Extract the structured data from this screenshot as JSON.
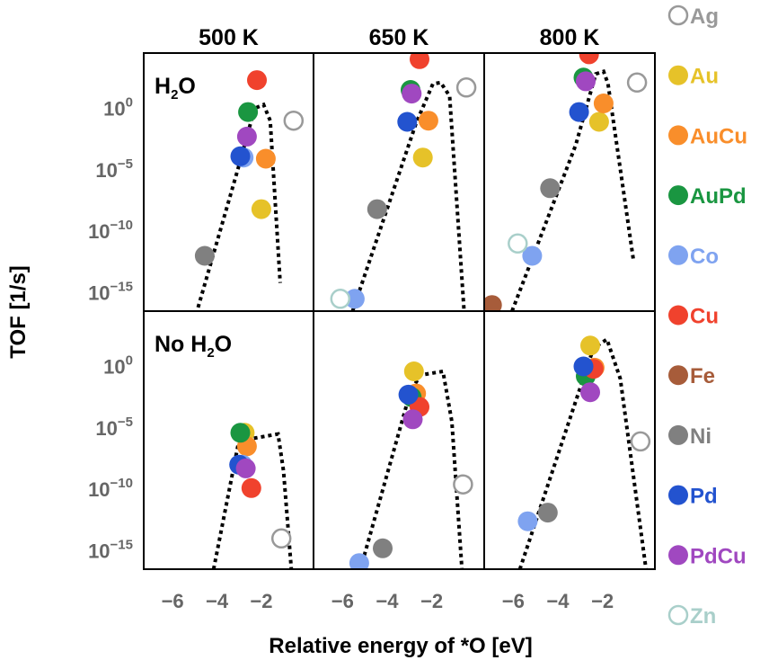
{
  "chart_data": {
    "type": "scatter",
    "columns": [
      "500 K",
      "650 K",
      "800 K"
    ],
    "rows": [
      {
        "label": "H₂O",
        "label_base": "H",
        "label_sub": "2",
        "label_tail": "O"
      },
      {
        "label": "No H₂O",
        "label_base": "No H",
        "label_sub": "2",
        "label_tail": "O"
      }
    ],
    "xlabel": "Relative energy of *O [eV]",
    "ylabel": "TOF [1/s]",
    "x_ticks": [
      -6,
      -4,
      -2
    ],
    "x_tick_labels": [
      "−6",
      "−4",
      "−2"
    ],
    "xlim": [
      -7.3,
      0.35
    ],
    "y_ticks": [
      0,
      -5,
      -10,
      -15
    ],
    "y_tick_labels": [
      {
        "base": "10",
        "exp": "0"
      },
      {
        "base": "10",
        "exp": "−5"
      },
      {
        "base": "10",
        "exp": "−10"
      },
      {
        "base": "10",
        "exp": "−15"
      }
    ],
    "y_scale": "log",
    "log10_ylim": [
      -16.5,
      4.5
    ],
    "legend_position": "right",
    "series": [
      {
        "name": "Ag",
        "color": "#999999",
        "hollow": true
      },
      {
        "name": "Au",
        "color": "#e6c229",
        "hollow": false
      },
      {
        "name": "AuCu",
        "color": "#f98e2b",
        "hollow": false
      },
      {
        "name": "AuPd",
        "color": "#1a9641",
        "hollow": false
      },
      {
        "name": "Co",
        "color": "#7fa3f0",
        "hollow": false
      },
      {
        "name": "Cu",
        "color": "#f0422d",
        "hollow": false
      },
      {
        "name": "Fe",
        "color": "#a75c3a",
        "hollow": false
      },
      {
        "name": "Ni",
        "color": "#808080",
        "hollow": false
      },
      {
        "name": "Pd",
        "color": "#2353cf",
        "hollow": false
      },
      {
        "name": "PdCu",
        "color": "#a048c0",
        "hollow": false
      },
      {
        "name": "Zn",
        "color": "#a9cfca",
        "hollow": true
      }
    ],
    "panels": [
      {
        "row": 0,
        "col": 0,
        "curve": [
          [
            -4.85,
            -16.2
          ],
          [
            -3.05,
            -4.9
          ],
          [
            -2.3,
            0.0
          ],
          [
            -1.9,
            0.3
          ],
          [
            -1.6,
            -1.0
          ],
          [
            -1.15,
            -14.2
          ]
        ],
        "points": [
          {
            "s": "Ag",
            "x": -0.55,
            "y": -1.0
          },
          {
            "s": "Au",
            "x": -2.0,
            "y": -8.2
          },
          {
            "s": "AuCu",
            "x": -1.8,
            "y": -4.1
          },
          {
            "s": "AuPd",
            "x": -2.6,
            "y": -0.3
          },
          {
            "s": "Co",
            "x": -2.8,
            "y": -4.0
          },
          {
            "s": "Cu",
            "x": -2.2,
            "y": 2.3
          },
          {
            "s": "Ni",
            "x": -4.55,
            "y": -12.0
          },
          {
            "s": "Pd",
            "x": -2.95,
            "y": -3.9
          },
          {
            "s": "PdCu",
            "x": -2.65,
            "y": -2.3
          }
        ]
      },
      {
        "row": 0,
        "col": 1,
        "curve": [
          [
            -5.55,
            -16.5
          ],
          [
            -2.7,
            -1.2
          ],
          [
            -1.95,
            2.0
          ],
          [
            -1.6,
            2.1
          ],
          [
            -1.2,
            1.0
          ],
          [
            -0.55,
            -16.5
          ]
        ],
        "points": [
          {
            "s": "Ag",
            "x": -0.45,
            "y": 1.7
          },
          {
            "s": "Au",
            "x": -2.4,
            "y": -4.0
          },
          {
            "s": "AuCu",
            "x": -2.15,
            "y": -1.0
          },
          {
            "s": "AuPd",
            "x": -2.95,
            "y": 1.5
          },
          {
            "s": "Co",
            "x": -5.45,
            "y": -15.5
          },
          {
            "s": "Cu",
            "x": -2.55,
            "y": 4.0
          },
          {
            "s": "Ni",
            "x": -4.45,
            "y": -8.2
          },
          {
            "s": "Pd",
            "x": -3.1,
            "y": -1.1
          },
          {
            "s": "PdCu",
            "x": -2.9,
            "y": 1.2
          },
          {
            "s": "Zn",
            "x": -6.1,
            "y": -15.5
          }
        ]
      },
      {
        "row": 0,
        "col": 2,
        "curve": [
          [
            -6.05,
            -16.5
          ],
          [
            -3.2,
            -3.0
          ],
          [
            -2.3,
            2.8
          ],
          [
            -1.95,
            3.0
          ],
          [
            -1.75,
            2.0
          ],
          [
            -0.6,
            -12.5
          ]
        ],
        "points": [
          {
            "s": "Ag",
            "x": -0.45,
            "y": 2.1
          },
          {
            "s": "Au",
            "x": -2.15,
            "y": -1.1
          },
          {
            "s": "AuCu",
            "x": -1.95,
            "y": 0.4
          },
          {
            "s": "AuPd",
            "x": -2.85,
            "y": 2.5
          },
          {
            "s": "Co",
            "x": -5.15,
            "y": -12.0
          },
          {
            "s": "Cu",
            "x": -2.6,
            "y": 4.4
          },
          {
            "s": "Fe",
            "x": -6.95,
            "y": -16.0
          },
          {
            "s": "Ni",
            "x": -4.35,
            "y": -6.5
          },
          {
            "s": "Pd",
            "x": -3.05,
            "y": -0.3
          },
          {
            "s": "PdCu",
            "x": -2.75,
            "y": 2.2
          },
          {
            "s": "Zn",
            "x": -5.8,
            "y": -11.0
          }
        ]
      },
      {
        "row": 1,
        "col": 0,
        "curve": [
          [
            -4.15,
            -16.5
          ],
          [
            -3.05,
            -6.4
          ],
          [
            -2.5,
            -5.9
          ],
          [
            -1.25,
            -5.5
          ],
          [
            -1.0,
            -8.5
          ],
          [
            -0.65,
            -16.5
          ]
        ],
        "points": [
          {
            "s": "Ag",
            "x": -1.1,
            "y": -14.0
          },
          {
            "s": "Au",
            "x": -2.75,
            "y": -5.4
          },
          {
            "s": "AuCu",
            "x": -2.65,
            "y": -6.5
          },
          {
            "s": "AuPd",
            "x": -2.95,
            "y": -5.4
          },
          {
            "s": "Co",
            "x": -2.85,
            "y": -8.0
          },
          {
            "s": "Cu",
            "x": -2.45,
            "y": -9.9
          },
          {
            "s": "Pd",
            "x": -3.0,
            "y": -8.0
          },
          {
            "s": "PdCu",
            "x": -2.7,
            "y": -8.3
          }
        ]
      },
      {
        "row": 1,
        "col": 1,
        "curve": [
          [
            -5.2,
            -16.5
          ],
          [
            -2.95,
            -2.0
          ],
          [
            -2.5,
            -0.7
          ],
          [
            -1.5,
            -0.4
          ],
          [
            -1.1,
            -4.5
          ],
          [
            -0.65,
            -16.5
          ]
        ],
        "points": [
          {
            "s": "Ag",
            "x": -0.6,
            "y": -9.6
          },
          {
            "s": "Au",
            "x": -2.8,
            "y": -0.4
          },
          {
            "s": "AuCu",
            "x": -2.7,
            "y": -2.2
          },
          {
            "s": "AuPd",
            "x": -2.9,
            "y": -2.5
          },
          {
            "s": "Co",
            "x": -5.25,
            "y": -16.0
          },
          {
            "s": "Cu",
            "x": -2.55,
            "y": -3.3
          },
          {
            "s": "Ni",
            "x": -4.2,
            "y": -14.8
          },
          {
            "s": "Pd",
            "x": -3.05,
            "y": -2.3
          },
          {
            "s": "PdCu",
            "x": -2.85,
            "y": -4.3
          }
        ]
      },
      {
        "row": 1,
        "col": 2,
        "curve": [
          [
            -5.7,
            -16.5
          ],
          [
            -3.1,
            -2.3
          ],
          [
            -2.4,
            1.5
          ],
          [
            -1.8,
            2.2
          ],
          [
            -1.2,
            -1.0
          ],
          [
            -0.05,
            -16.5
          ]
        ],
        "points": [
          {
            "s": "Ag",
            "x": -0.3,
            "y": -6.1
          },
          {
            "s": "Au",
            "x": -2.55,
            "y": 1.7
          },
          {
            "s": "AuCu",
            "x": -2.35,
            "y": -0.1
          },
          {
            "s": "AuPd",
            "x": -2.75,
            "y": -0.8
          },
          {
            "s": "Co",
            "x": -5.35,
            "y": -12.6
          },
          {
            "s": "Cu",
            "x": -2.4,
            "y": -0.2
          },
          {
            "s": "Ni",
            "x": -4.45,
            "y": -11.9
          },
          {
            "s": "Pd",
            "x": -2.85,
            "y": 0.0
          },
          {
            "s": "PdCu",
            "x": -2.55,
            "y": -2.1
          }
        ]
      }
    ]
  }
}
